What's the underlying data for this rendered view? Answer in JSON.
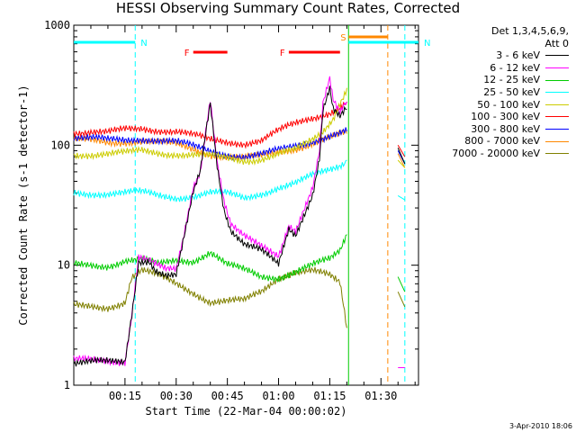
{
  "title": "HESSI Observing Summary Count Rates, Corrected",
  "legend_header": [
    "Det 1,3,4,5,6,9,",
    "Att 0"
  ],
  "stamp": "3-Apr-2010 18:06",
  "colors": {
    "black": "#000000",
    "magenta": "#ff00ff",
    "green": "#00cc00",
    "cyan": "#00ffff",
    "yellow": "#cccc00",
    "red": "#ff0000",
    "blue": "#0000ff",
    "orange": "#ff8800",
    "olive": "#808000"
  },
  "chart_data": {
    "type": "line",
    "title": "HESSI Observing Summary Count Rates, Corrected",
    "xlabel": "Start Time (22-Mar-04 00:00:02)",
    "ylabel": "Corrected Count Rate (s-1 detector-1)",
    "x_ticks": [
      "00:15",
      "00:30",
      "00:45",
      "01:00",
      "01:15",
      "01:30"
    ],
    "x_tick_minutes": [
      15,
      30,
      45,
      60,
      75,
      90
    ],
    "xlim_minutes": [
      0,
      101
    ],
    "yscale": "log",
    "ylim": [
      1,
      1000
    ],
    "y_ticks": [
      1,
      10,
      100,
      1000
    ],
    "y_tick_labels": [
      "1",
      "10",
      "100",
      "1000"
    ],
    "annotations": [
      {
        "label": "N",
        "kind": "night_bar",
        "color": "cyan",
        "start": 0,
        "end": 18
      },
      {
        "label": "N",
        "kind": "night_bar",
        "color": "cyan",
        "start": 80.5,
        "end": 101
      },
      {
        "label": "F",
        "kind": "flare_bar",
        "color": "red",
        "start": 35,
        "end": 45
      },
      {
        "label": "F",
        "kind": "flare_bar",
        "color": "red",
        "start": 63,
        "end": 78
      },
      {
        "label": "S",
        "kind": "saa_bar",
        "color": "orange",
        "start": 80.5,
        "end": 92
      }
    ],
    "vlines": [
      {
        "x": 18,
        "color": "cyan",
        "style": "dashed"
      },
      {
        "x": 80.5,
        "color": "green",
        "style": "solid"
      },
      {
        "x": 92,
        "color": "orange",
        "style": "dashed"
      },
      {
        "x": 97,
        "color": "cyan",
        "style": "dashed"
      }
    ],
    "gap": [
      80.5,
      95
    ],
    "series": [
      {
        "name": "3 - 6 keV",
        "color": "black",
        "x": [
          0,
          15,
          17,
          19,
          22,
          24,
          27,
          30,
          32,
          35,
          37,
          39,
          40,
          42,
          44,
          46,
          50,
          55,
          60,
          63,
          65,
          67,
          70,
          72,
          73,
          75,
          76,
          78,
          80
        ],
        "y": [
          1.5,
          1.6,
          4,
          11,
          11,
          9,
          8,
          8,
          15,
          40,
          60,
          150,
          230,
          70,
          30,
          20,
          15,
          13,
          10,
          20,
          18,
          25,
          40,
          80,
          200,
          300,
          200,
          170,
          200
        ]
      },
      {
        "name": "6 - 12 keV",
        "color": "magenta",
        "x": [
          0,
          15,
          17,
          19,
          22,
          24,
          27,
          30,
          32,
          35,
          37,
          39,
          40,
          42,
          44,
          46,
          50,
          55,
          60,
          63,
          65,
          67,
          70,
          72,
          73,
          75,
          76,
          78,
          80
        ],
        "y": [
          1.6,
          1.6,
          4,
          12,
          11,
          10,
          9,
          9,
          16,
          45,
          60,
          160,
          250,
          75,
          35,
          22,
          17,
          14,
          12,
          22,
          20,
          28,
          45,
          90,
          220,
          350,
          230,
          180,
          230
        ]
      },
      {
        "name": "12 - 25 keV",
        "color": "green",
        "x": [
          0,
          10,
          15,
          20,
          25,
          30,
          35,
          40,
          45,
          50,
          55,
          60,
          65,
          70,
          75,
          78,
          80
        ],
        "y": [
          10,
          10,
          11,
          11,
          10,
          11,
          11,
          13,
          10,
          9,
          8,
          8,
          9,
          10,
          11,
          13,
          18
        ]
      },
      {
        "name": "25 - 50 keV",
        "color": "cyan",
        "x": [
          0,
          10,
          20,
          25,
          30,
          35,
          40,
          45,
          50,
          55,
          60,
          65,
          70,
          75,
          78,
          80
        ],
        "y": [
          40,
          40,
          40,
          38,
          37,
          38,
          40,
          39,
          36,
          40,
          45,
          48,
          55,
          62,
          68,
          75
        ]
      },
      {
        "name": "50 - 100 keV",
        "color": "yellow",
        "x": [
          0,
          10,
          15,
          20,
          30,
          40,
          50,
          55,
          60,
          65,
          70,
          73,
          76,
          78,
          80
        ],
        "y": [
          85,
          84,
          85,
          90,
          85,
          80,
          75,
          78,
          85,
          90,
          110,
          130,
          170,
          230,
          300
        ]
      },
      {
        "name": "100 - 300 keV",
        "color": "red",
        "x": [
          0,
          10,
          15,
          20,
          30,
          40,
          50,
          55,
          60,
          65,
          70,
          75,
          78,
          80
        ],
        "y": [
          130,
          125,
          135,
          140,
          130,
          110,
          105,
          110,
          130,
          150,
          170,
          190,
          210,
          230
        ]
      },
      {
        "name": "300 - 800 keV",
        "color": "blue",
        "x": [
          0,
          10,
          15,
          20,
          30,
          40,
          50,
          55,
          60,
          65,
          70,
          75,
          78,
          80
        ],
        "y": [
          115,
          110,
          112,
          115,
          105,
          90,
          80,
          82,
          90,
          100,
          110,
          120,
          125,
          130
        ]
      },
      {
        "name": "800 - 7000 keV",
        "color": "orange",
        "x": [
          0,
          10,
          15,
          20,
          30,
          40,
          50,
          55,
          60,
          65,
          70,
          75,
          78,
          80
        ],
        "y": [
          110,
          105,
          108,
          110,
          100,
          85,
          78,
          80,
          88,
          95,
          105,
          115,
          120,
          125
        ]
      },
      {
        "name": "7000 - 20000 keV",
        "color": "olive",
        "x": [
          0,
          10,
          15,
          17,
          20,
          25,
          30,
          35,
          40,
          45,
          50,
          55,
          60,
          65,
          70,
          75,
          78,
          80
        ],
        "y": [
          4.5,
          4.5,
          5,
          8,
          9,
          8,
          7,
          6,
          5,
          5,
          5,
          6,
          8,
          9,
          9,
          8,
          7,
          3
        ]
      }
    ],
    "post_gap": {
      "x": [
        95,
        97
      ],
      "y": {
        "3 - 6 keV": [
          95,
          70
        ],
        "6 - 12 keV": [
          1.4,
          1.4
        ],
        "12 - 25 keV": [
          8,
          6
        ],
        "25 - 50 keV": [
          38,
          35
        ],
        "50 - 100 keV": [
          75,
          65
        ],
        "100 - 300 keV": [
          100,
          80
        ],
        "300 - 800 keV": [
          90,
          70
        ],
        "800 - 7000 keV": [
          85,
          65
        ],
        "7000 - 20000 keV": [
          6,
          4.5
        ]
      }
    },
    "legend_position": "right"
  }
}
